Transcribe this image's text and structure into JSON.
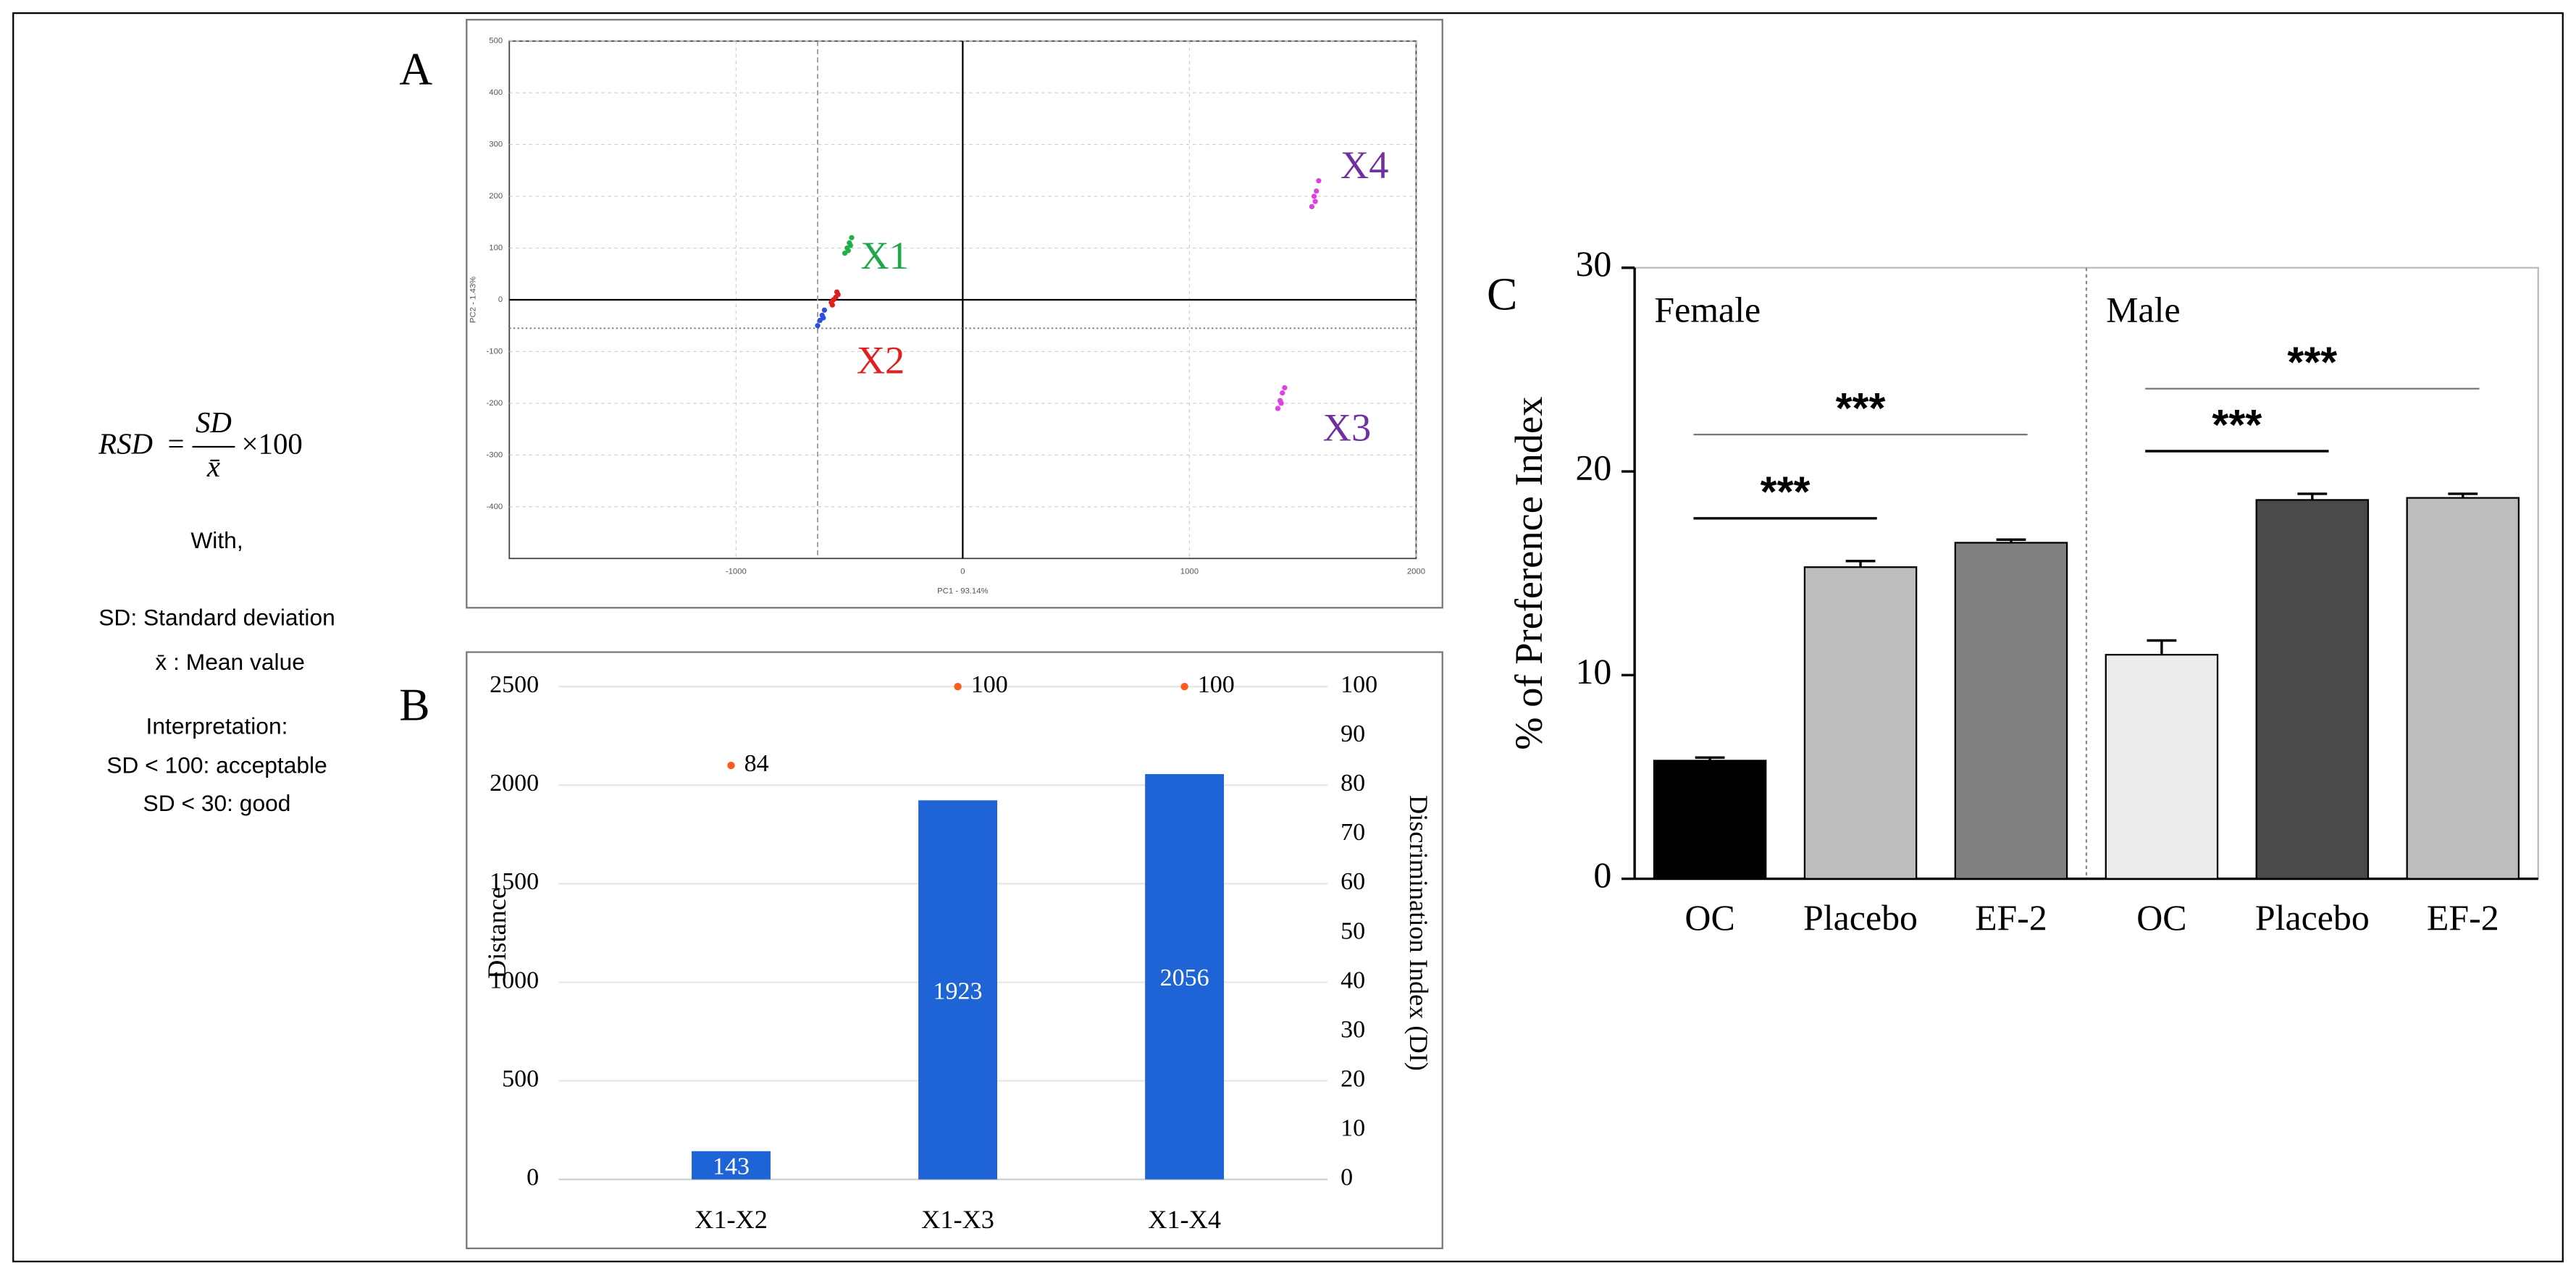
{
  "formula": {
    "lhs": "RSD",
    "eq": "=",
    "num": "SD",
    "den": "x̄",
    "tail": "×100",
    "lines": [
      "With,",
      "SD: Standard deviation",
      "x̄ : Mean value",
      "Interpretation:",
      "SD < 100: acceptable",
      "SD < 30: good"
    ]
  },
  "chart_data": [
    {
      "type": "scatter",
      "panel": "A",
      "xlabel": "PC1 - 93.14%",
      "ylabel": "PC2 - 1.43%",
      "xlim": [
        -2000,
        2000
      ],
      "ylim": [
        -500,
        500
      ],
      "xticks": [
        -1000,
        0,
        1000,
        2000
      ],
      "yticks": [
        -400,
        -300,
        -200,
        -100,
        0,
        100,
        200,
        300,
        400,
        500
      ],
      "grid": true,
      "vlines": [
        -640
      ],
      "hlines": [
        -55
      ],
      "series": [
        {
          "name": "X1",
          "color": "#22b04a",
          "label_color": "#1fa84a",
          "x": [
            -520,
            -500,
            -510,
            -490,
            -505,
            -495
          ],
          "y": [
            90,
            110,
            100,
            120,
            95,
            105
          ]
        },
        {
          "name": "X2",
          "color": "#e02020",
          "label_color": "#e02020",
          "x": [
            -580,
            -560,
            -570,
            -550,
            -575,
            -555
          ],
          "y": [
            -5,
            5,
            0,
            10,
            -10,
            15
          ]
        },
        {
          "color": "#2f4fd8",
          "x": [
            -640,
            -620,
            -630,
            -610,
            -615
          ],
          "y": [
            -50,
            -30,
            -40,
            -20,
            -35
          ]
        },
        {
          "name": "X3",
          "color": "#e040e0",
          "label_color": "#7030a0",
          "x": [
            1390,
            1410,
            1400,
            1420,
            1405
          ],
          "y": [
            -210,
            -180,
            -195,
            -170,
            -200
          ]
        },
        {
          "name": "X4",
          "color": "#e040e0",
          "label_color": "#7030a0",
          "x": [
            1540,
            1560,
            1550,
            1570,
            1555
          ],
          "y": [
            180,
            210,
            200,
            230,
            190
          ]
        }
      ]
    },
    {
      "type": "bar",
      "panel": "B",
      "categories": [
        "X1-X2",
        "X1-X3",
        "X1-X4"
      ],
      "ylabel": "Distance",
      "y2label": "Discrimination Index (DI)",
      "ylim": [
        0,
        2500
      ],
      "yticks": [
        0,
        500,
        1000,
        1500,
        2000,
        2500
      ],
      "y2lim": [
        0,
        100
      ],
      "y2ticks": [
        0,
        10,
        20,
        30,
        40,
        50,
        60,
        70,
        80,
        90,
        100
      ],
      "grid": true,
      "series": [
        {
          "values": [
            143,
            1923,
            2056
          ],
          "color": "#1f64d6"
        },
        {
          "values": [
            84,
            100,
            100
          ],
          "color": "#ff5a1f",
          "axis": "y2"
        }
      ]
    },
    {
      "type": "bar",
      "panel": "C",
      "ylabel": "% of Preference Index",
      "ylim": [
        0,
        30
      ],
      "yticks": [
        0,
        10,
        20,
        30
      ],
      "panels": [
        {
          "name": "Female",
          "categories": [
            "OC",
            "Placebo",
            "EF-2"
          ],
          "values": [
            5.8,
            15.3,
            16.5
          ],
          "errors": [
            0.15,
            0.3,
            0.15
          ],
          "colors": [
            "#000000",
            "#bdbdbd",
            "#808080"
          ],
          "significance": [
            {
              "label": "***",
              "pair": [
                "OC",
                "Placebo"
              ]
            },
            {
              "label": "***",
              "pair": [
                "OC",
                "EF-2"
              ]
            }
          ]
        },
        {
          "name": "Male",
          "categories": [
            "OC",
            "Placebo",
            "EF-2"
          ],
          "values": [
            11.0,
            18.6,
            18.7
          ],
          "errors": [
            0.7,
            0.3,
            0.2
          ],
          "colors": [
            "#ececec",
            "#4a4a4a",
            "#bdbdbd"
          ],
          "significance": [
            {
              "label": "***",
              "pair": [
                "OC",
                "Placebo"
              ]
            },
            {
              "label": "***",
              "pair": [
                "OC",
                "EF-2"
              ]
            }
          ]
        }
      ]
    }
  ]
}
